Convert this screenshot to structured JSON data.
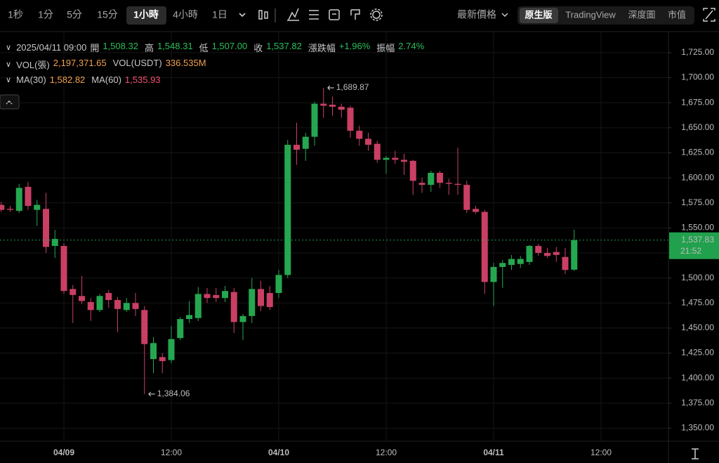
{
  "toolbar": {
    "intervals": [
      "1秒",
      "1分",
      "5分",
      "15分",
      "1小時",
      "4小時",
      "1日"
    ],
    "price_type": "最新價格",
    "views": [
      "原生版",
      "TradingView",
      "深度圖",
      "市值"
    ]
  },
  "info": {
    "ohlc_row": {
      "time": "2025/04/11 09:00",
      "items": [
        {
          "label": "開",
          "value": "1,508.32"
        },
        {
          "label": "高",
          "value": "1,548.31"
        },
        {
          "label": "低",
          "value": "1,507.00"
        },
        {
          "label": "收",
          "value": "1,537.82"
        },
        {
          "label": "漲跌幅",
          "value": "+1.96%"
        },
        {
          "label": "振幅",
          "value": "2.74%"
        }
      ]
    },
    "vol_row": [
      {
        "label": "VOL(張)",
        "value": "2,197,371.65"
      },
      {
        "label": "VOL(USDT)",
        "value": "336.535M"
      }
    ],
    "ma_row": [
      {
        "label": "MA(30)",
        "value": "1,582.82"
      },
      {
        "label": "MA(60)",
        "value": "1,535.93"
      }
    ]
  },
  "chart_data": {
    "type": "candlestick",
    "categories": [
      null,
      null,
      null,
      null,
      null,
      null,
      null,
      "04/09",
      null,
      null,
      null,
      null,
      null,
      null,
      null,
      null,
      null,
      null,
      null,
      "12:00",
      null,
      null,
      null,
      null,
      null,
      null,
      null,
      null,
      null,
      null,
      null,
      "04/10",
      null,
      null,
      null,
      null,
      null,
      null,
      null,
      null,
      null,
      null,
      null,
      "12:00",
      null,
      null,
      null,
      null,
      null,
      null,
      null,
      null,
      null,
      null,
      null,
      "04/11",
      null,
      null,
      null,
      null,
      null,
      null,
      null,
      null,
      null,
      null,
      null,
      "12:00"
    ],
    "series": {
      "up_color": "#25a750",
      "down_color": "#ca3f64",
      "open": [
        1573,
        1569,
        1567,
        1591,
        1568,
        1569,
        1532,
        1532,
        1489,
        1482,
        1476,
        1468,
        1485,
        1478,
        1468,
        1475,
        1468,
        1419,
        1421,
        1418,
        1440,
        1459,
        1460,
        1484,
        1483,
        1480,
        1486,
        1456,
        1462,
        1489,
        1485,
        1485,
        1503,
        1633,
        1629,
        1641,
        1674,
        1673,
        1671,
        1670,
        1647,
        1639,
        1634,
        1618,
        1620,
        1618,
        1617,
        1595,
        1593,
        1605,
        1595,
        1594,
        1593,
        1569,
        1566,
        1496,
        1511,
        1513,
        1514,
        1516,
        1532,
        1525,
        1526,
        1521,
        1508.32,
        null,
        null,
        null
      ],
      "high": [
        1576,
        1572,
        1594,
        1596,
        1578,
        1585,
        1548,
        1535,
        1493,
        1502,
        1480,
        1484,
        1488,
        1481,
        1480,
        1485,
        1472,
        1441,
        1425,
        1452,
        1461,
        1477,
        1491,
        1490,
        1490,
        1492,
        1490,
        1464,
        1500,
        1497,
        1492,
        1508,
        1638,
        1655,
        1645,
        1676,
        1689.87,
        1681,
        1674,
        1672,
        1652,
        1645,
        1637,
        1622,
        1627,
        1624,
        1618,
        1600,
        1607,
        1607,
        1599,
        1630,
        1597,
        1572,
        1568,
        1515,
        1518,
        1523,
        1522,
        1533,
        1534,
        1530,
        1531,
        1530,
        1548.31,
        null,
        null,
        null
      ],
      "low": [
        1566,
        1566,
        1565,
        1568,
        1552,
        1525,
        1520,
        1484,
        1455,
        1474,
        1457,
        1466,
        1470,
        1446,
        1466,
        1462,
        1384.06,
        1405,
        1405,
        1415,
        1438,
        1455,
        1457,
        1475,
        1476,
        1476,
        1445,
        1438,
        1455,
        1467,
        1468,
        1480,
        1500,
        1613,
        1617,
        1632,
        1660,
        1662,
        1660,
        1640,
        1632,
        1627,
        1615,
        1604,
        1614,
        1603,
        1583,
        1585,
        1586,
        1590,
        1583,
        1583,
        1565,
        1564,
        1484,
        1472,
        1490,
        1508,
        1510,
        1513,
        1522,
        1520,
        1516,
        1504,
        1507.0,
        null,
        null,
        null
      ],
      "close": [
        1568,
        1568,
        1590,
        1572,
        1573,
        1531,
        1539,
        1487,
        1483,
        1477,
        1468,
        1482,
        1478,
        1469,
        1475,
        1469,
        1434,
        1435,
        1417,
        1439,
        1459,
        1463,
        1484,
        1480,
        1480,
        1487,
        1456,
        1462,
        1489,
        1472,
        1471,
        1503,
        1633,
        1628,
        1641,
        1674,
        1672,
        1671,
        1668,
        1647,
        1639,
        1633,
        1618,
        1620,
        1618,
        1616,
        1597,
        1593,
        1605,
        1595,
        1594,
        1593,
        1568,
        1566,
        1496,
        1511,
        1515,
        1519,
        1519,
        1532,
        1525,
        1522,
        1523,
        1508,
        1537.82,
        null,
        null,
        null
      ]
    },
    "high_label": "1,689.87",
    "low_label": "1,384.06",
    "last_price": {
      "value": 1537.83,
      "label": "1,537.83",
      "countdown": "21:52",
      "color": "#21a14d"
    },
    "ylim": [
      1337,
      1746
    ],
    "yticks": [
      {
        "value": 1350,
        "label": "1,350.00"
      },
      {
        "value": 1375,
        "label": "1,375.00"
      },
      {
        "value": 1400,
        "label": "1,400.00"
      },
      {
        "value": 1425,
        "label": "1,425.00"
      },
      {
        "value": 1450,
        "label": "1,450.00"
      },
      {
        "value": 1475,
        "label": "1,475.00"
      },
      {
        "value": 1500,
        "label": "1,500.00"
      },
      {
        "value": 1525,
        "label": "1,525.00"
      },
      {
        "value": 1550,
        "label": "1,550.00"
      },
      {
        "value": 1575,
        "label": "1,575.00"
      },
      {
        "value": 1600,
        "label": "1,600.00"
      },
      {
        "value": 1625,
        "label": "1,625.00"
      },
      {
        "value": 1650,
        "label": "1,650.00"
      },
      {
        "value": 1675,
        "label": "1,675.00"
      },
      {
        "value": 1700,
        "label": "1,700.00"
      },
      {
        "value": 1725,
        "label": "1,725.00"
      }
    ],
    "grid": true
  }
}
